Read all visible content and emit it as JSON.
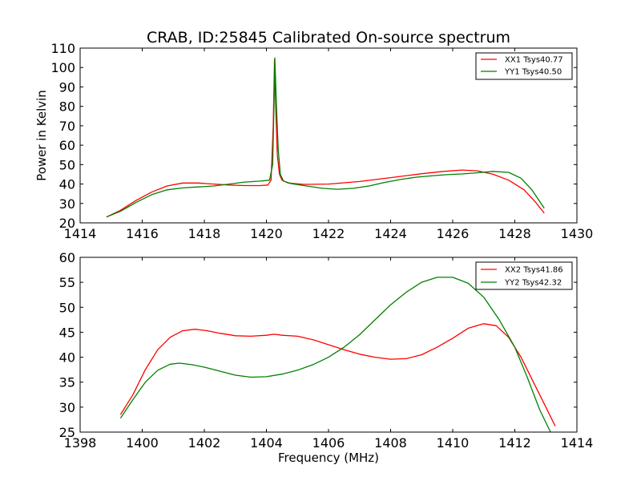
{
  "chart_data": [
    {
      "type": "line",
      "title": "CRAB, ID:25845 Calibrated On-source spectrum",
      "xlabel": "",
      "ylabel": "Power in Kelvin",
      "xlim": [
        1414,
        1430
      ],
      "ylim": [
        20,
        110
      ],
      "xticks": [
        1414,
        1416,
        1418,
        1420,
        1422,
        1424,
        1426,
        1428,
        1430
      ],
      "yticks": [
        20,
        30,
        40,
        50,
        60,
        70,
        80,
        90,
        100,
        110
      ],
      "legend_position": "top-right",
      "grid": false,
      "series": [
        {
          "name": "XX1 Tsys40.77",
          "color": "#ff0000",
          "points": [
            [
              1414.85,
              23
            ],
            [
              1415.3,
              26.5
            ],
            [
              1415.8,
              31.5
            ],
            [
              1416.3,
              35.8
            ],
            [
              1416.8,
              39
            ],
            [
              1417.3,
              40.5
            ],
            [
              1417.8,
              40.5
            ],
            [
              1418.3,
              40
            ],
            [
              1418.8,
              39.5
            ],
            [
              1419.3,
              39.2
            ],
            [
              1419.8,
              39.2
            ],
            [
              1420.05,
              39.5
            ],
            [
              1420.15,
              42
            ],
            [
              1420.22,
              70
            ],
            [
              1420.26,
              104
            ],
            [
              1420.3,
              80
            ],
            [
              1420.35,
              55
            ],
            [
              1420.42,
              45
            ],
            [
              1420.5,
              42
            ],
            [
              1420.7,
              40.5
            ],
            [
              1421.2,
              39.8
            ],
            [
              1422,
              40
            ],
            [
              1423,
              41.3
            ],
            [
              1424,
              43.3
            ],
            [
              1425,
              45.3
            ],
            [
              1425.7,
              46.5
            ],
            [
              1426.3,
              47.2
            ],
            [
              1426.8,
              46.8
            ],
            [
              1427.3,
              45
            ],
            [
              1427.8,
              42
            ],
            [
              1428.3,
              37
            ],
            [
              1428.65,
              31
            ],
            [
              1428.95,
              25
            ]
          ]
        },
        {
          "name": "YY1 Tsys40.50",
          "color": "#008000",
          "points": [
            [
              1414.85,
              23
            ],
            [
              1415.3,
              26
            ],
            [
              1415.8,
              30.5
            ],
            [
              1416.3,
              34.5
            ],
            [
              1416.8,
              37
            ],
            [
              1417.3,
              38
            ],
            [
              1417.8,
              38.5
            ],
            [
              1418.3,
              39
            ],
            [
              1418.8,
              40
            ],
            [
              1419.3,
              41
            ],
            [
              1419.8,
              41.5
            ],
            [
              1420.1,
              42
            ],
            [
              1420.2,
              50
            ],
            [
              1420.25,
              85
            ],
            [
              1420.27,
              105
            ],
            [
              1420.32,
              82
            ],
            [
              1420.38,
              58
            ],
            [
              1420.45,
              45
            ],
            [
              1420.55,
              41.5
            ],
            [
              1420.8,
              40.2
            ],
            [
              1421.3,
              39
            ],
            [
              1421.8,
              37.8
            ],
            [
              1422.3,
              37.3
            ],
            [
              1422.8,
              37.8
            ],
            [
              1423.3,
              39
            ],
            [
              1423.8,
              40.8
            ],
            [
              1424.3,
              42.3
            ],
            [
              1424.8,
              43.5
            ],
            [
              1425.3,
              44.2
            ],
            [
              1425.8,
              44.8
            ],
            [
              1426.3,
              45.2
            ],
            [
              1426.8,
              45.8
            ],
            [
              1427.3,
              46.5
            ],
            [
              1427.8,
              46
            ],
            [
              1428.2,
              43
            ],
            [
              1428.55,
              37
            ],
            [
              1428.95,
              27.5
            ]
          ]
        }
      ]
    },
    {
      "type": "line",
      "title": "",
      "xlabel": "Frequency (MHz)",
      "ylabel": "",
      "xlim": [
        1398,
        1414
      ],
      "ylim": [
        25,
        60
      ],
      "xticks": [
        1398,
        1400,
        1402,
        1404,
        1406,
        1408,
        1410,
        1412,
        1414
      ],
      "yticks": [
        25,
        30,
        35,
        40,
        45,
        50,
        55,
        60
      ],
      "legend_position": "top-right",
      "grid": false,
      "series": [
        {
          "name": "XX2 Tsys41.86",
          "color": "#ff0000",
          "points": [
            [
              1399.3,
              28.5
            ],
            [
              1399.7,
              32.5
            ],
            [
              1400.1,
              37.5
            ],
            [
              1400.5,
              41.5
            ],
            [
              1400.9,
              44
            ],
            [
              1401.3,
              45.3
            ],
            [
              1401.7,
              45.6
            ],
            [
              1402.1,
              45.3
            ],
            [
              1402.5,
              44.8
            ],
            [
              1403,
              44.3
            ],
            [
              1403.5,
              44.2
            ],
            [
              1404,
              44.4
            ],
            [
              1404.25,
              44.6
            ],
            [
              1404.5,
              44.4
            ],
            [
              1405,
              44.2
            ],
            [
              1405.5,
              43.5
            ],
            [
              1406,
              42.5
            ],
            [
              1406.5,
              41.5
            ],
            [
              1407,
              40.6
            ],
            [
              1407.5,
              40
            ],
            [
              1408,
              39.6
            ],
            [
              1408.5,
              39.7
            ],
            [
              1409,
              40.5
            ],
            [
              1409.5,
              42
            ],
            [
              1410,
              43.8
            ],
            [
              1410.5,
              45.8
            ],
            [
              1411,
              46.7
            ],
            [
              1411.4,
              46.3
            ],
            [
              1411.8,
              44
            ],
            [
              1412.2,
              40
            ],
            [
              1412.6,
              35
            ],
            [
              1413,
              30
            ],
            [
              1413.3,
              26.2
            ]
          ]
        },
        {
          "name": "YY2 Tsys42.32",
          "color": "#008000",
          "points": [
            [
              1399.3,
              27.8
            ],
            [
              1399.7,
              31.5
            ],
            [
              1400.1,
              35
            ],
            [
              1400.5,
              37.4
            ],
            [
              1400.9,
              38.6
            ],
            [
              1401.2,
              38.8
            ],
            [
              1401.6,
              38.5
            ],
            [
              1402,
              38
            ],
            [
              1402.5,
              37.2
            ],
            [
              1403,
              36.4
            ],
            [
              1403.5,
              36
            ],
            [
              1404,
              36.1
            ],
            [
              1404.5,
              36.6
            ],
            [
              1405,
              37.4
            ],
            [
              1405.5,
              38.5
            ],
            [
              1406,
              40
            ],
            [
              1406.5,
              42
            ],
            [
              1407,
              44.5
            ],
            [
              1407.5,
              47.5
            ],
            [
              1408,
              50.5
            ],
            [
              1408.5,
              53
            ],
            [
              1409,
              55
            ],
            [
              1409.5,
              56
            ],
            [
              1410,
              56
            ],
            [
              1410.5,
              54.8
            ],
            [
              1411,
              52
            ],
            [
              1411.5,
              47.5
            ],
            [
              1412,
              42
            ],
            [
              1412.4,
              36
            ],
            [
              1412.8,
              29.5
            ],
            [
              1413.15,
              25
            ]
          ]
        }
      ]
    }
  ]
}
